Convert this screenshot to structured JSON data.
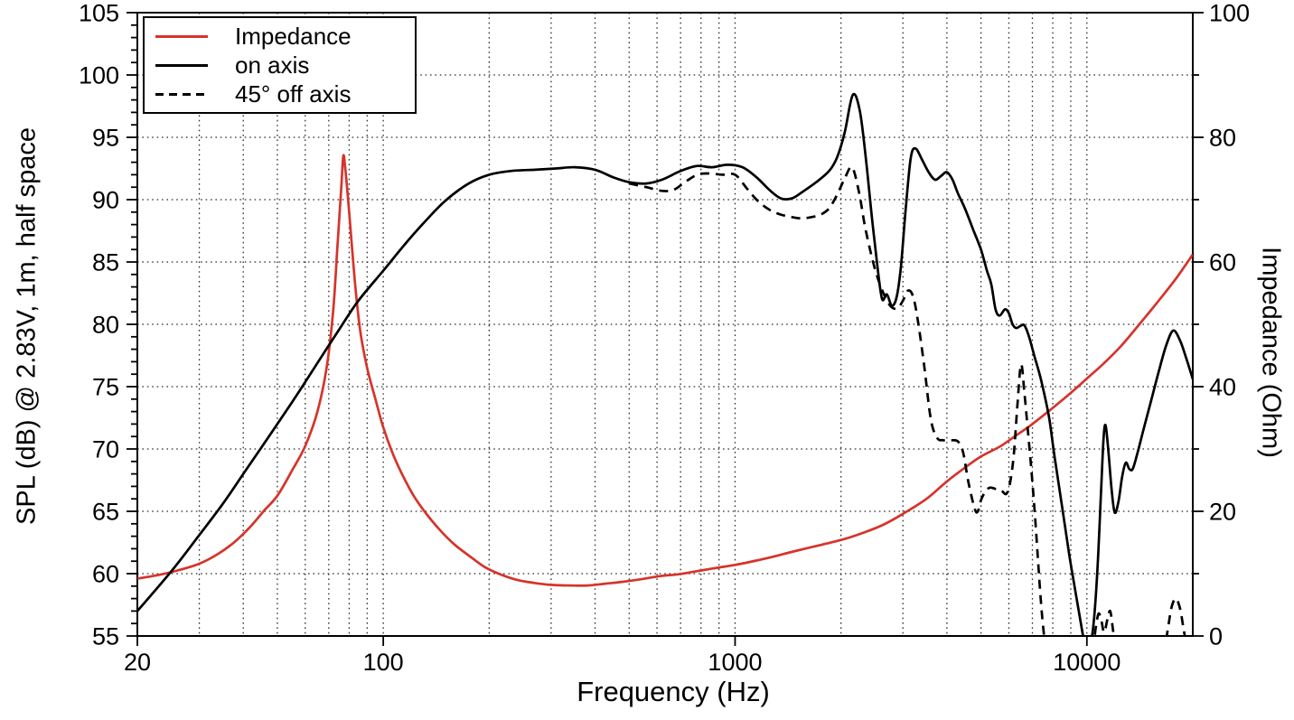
{
  "chart_data": {
    "type": "line",
    "x_axis": {
      "label": "Frequency (Hz)",
      "scale": "log",
      "min": 20,
      "max": 20000,
      "major_ticks": [
        20,
        100,
        1000,
        10000
      ],
      "major_tick_labels": [
        "20",
        "100",
        "1000",
        "10000"
      ]
    },
    "left_axis": {
      "label": "SPL (dB) @ 2.83V, 1m, half space",
      "min": 55,
      "max": 105,
      "major_step": 5,
      "minor_step": 1,
      "major_ticks": [
        55,
        60,
        65,
        70,
        75,
        80,
        85,
        90,
        95,
        100,
        105
      ]
    },
    "right_axis": {
      "label": "Impedance (Ohm)",
      "min": 0,
      "max": 100,
      "major_step": 20,
      "minor_step": 10,
      "major_ticks": [
        0,
        20,
        40,
        60,
        80,
        100
      ]
    },
    "grid": {
      "show": true,
      "style": "dotted",
      "color": "#2f2f2f",
      "h_lines_db": [
        60,
        65,
        70,
        75,
        80,
        85,
        90,
        95,
        100
      ],
      "v_lines_hz": [
        30,
        40,
        50,
        60,
        70,
        80,
        90,
        100,
        200,
        300,
        400,
        500,
        600,
        700,
        800,
        900,
        1000,
        2000,
        3000,
        4000,
        5000,
        6000,
        7000,
        8000,
        9000,
        10000
      ]
    },
    "legend": {
      "position": "top-left",
      "items": [
        {
          "label": "Impedance",
          "color": "#d5342b",
          "style": "solid"
        },
        {
          "label": "on axis",
          "color": "#000000",
          "style": "solid"
        },
        {
          "label": "45° off axis",
          "color": "#000000",
          "style": "dashed"
        }
      ]
    },
    "series": [
      {
        "name": "Impedance",
        "axis": "right",
        "unit": "Ohm",
        "color": "#d5342b",
        "style": "solid",
        "points": [
          [
            20,
            9.2
          ],
          [
            23,
            9.8
          ],
          [
            26,
            10.5
          ],
          [
            30,
            11.6
          ],
          [
            34,
            13.2
          ],
          [
            38,
            15.2
          ],
          [
            42,
            17.6
          ],
          [
            46,
            20.2
          ],
          [
            50,
            22.5
          ],
          [
            55,
            26.5
          ],
          [
            60,
            30.5
          ],
          [
            65,
            36
          ],
          [
            69,
            43
          ],
          [
            72,
            52
          ],
          [
            74,
            62
          ],
          [
            76,
            72
          ],
          [
            77,
            77
          ],
          [
            78,
            75
          ],
          [
            80,
            68
          ],
          [
            83,
            57
          ],
          [
            86,
            49
          ],
          [
            90,
            43
          ],
          [
            95,
            38
          ],
          [
            100,
            33.5
          ],
          [
            106,
            29.5
          ],
          [
            113,
            26
          ],
          [
            122,
            22.5
          ],
          [
            133,
            19.5
          ],
          [
            146,
            16.8
          ],
          [
            160,
            14.6
          ],
          [
            178,
            12.6
          ],
          [
            195,
            11
          ],
          [
            215,
            9.9
          ],
          [
            240,
            9
          ],
          [
            270,
            8.5
          ],
          [
            300,
            8.2
          ],
          [
            340,
            8.1
          ],
          [
            380,
            8.1
          ],
          [
            430,
            8.4
          ],
          [
            480,
            8.7
          ],
          [
            540,
            9.1
          ],
          [
            610,
            9.6
          ],
          [
            690,
            9.9
          ],
          [
            780,
            10.4
          ],
          [
            880,
            10.9
          ],
          [
            1000,
            11.4
          ],
          [
            1150,
            12.1
          ],
          [
            1300,
            12.8
          ],
          [
            1500,
            13.7
          ],
          [
            1750,
            14.6
          ],
          [
            2000,
            15.4
          ],
          [
            2300,
            16.5
          ],
          [
            2650,
            17.9
          ],
          [
            3000,
            19.6
          ],
          [
            3500,
            22
          ],
          [
            4000,
            24.8
          ],
          [
            4500,
            27
          ],
          [
            5000,
            28.8
          ],
          [
            5700,
            30.5
          ],
          [
            6300,
            32.2
          ],
          [
            7000,
            34
          ],
          [
            8000,
            36.6
          ],
          [
            9000,
            39
          ],
          [
            10000,
            41.3
          ],
          [
            11200,
            43.8
          ],
          [
            12500,
            46.5
          ],
          [
            14000,
            49.8
          ],
          [
            16000,
            53.8
          ],
          [
            18000,
            57.5
          ],
          [
            20000,
            61.2
          ]
        ]
      },
      {
        "name": "on axis",
        "axis": "left",
        "unit": "dB",
        "color": "#000000",
        "style": "solid",
        "points": [
          [
            20,
            57
          ],
          [
            25,
            60.2
          ],
          [
            30,
            63.1
          ],
          [
            35,
            65.6
          ],
          [
            40,
            68
          ],
          [
            45,
            70.1
          ],
          [
            50,
            72
          ],
          [
            57,
            74.4
          ],
          [
            65,
            76.9
          ],
          [
            75,
            79.6
          ],
          [
            85,
            81.9
          ],
          [
            100,
            84.3
          ],
          [
            115,
            86.4
          ],
          [
            130,
            88.1
          ],
          [
            150,
            89.9
          ],
          [
            175,
            91.3
          ],
          [
            200,
            92
          ],
          [
            230,
            92.3
          ],
          [
            270,
            92.4
          ],
          [
            310,
            92.5
          ],
          [
            350,
            92.6
          ],
          [
            400,
            92.4
          ],
          [
            450,
            91.8
          ],
          [
            500,
            91.4
          ],
          [
            560,
            91.3
          ],
          [
            620,
            91.6
          ],
          [
            700,
            92.3
          ],
          [
            780,
            92.7
          ],
          [
            860,
            92.6
          ],
          [
            950,
            92.8
          ],
          [
            1050,
            92.6
          ],
          [
            1150,
            91.8
          ],
          [
            1250,
            90.8
          ],
          [
            1350,
            90.1
          ],
          [
            1450,
            90.1
          ],
          [
            1550,
            90.6
          ],
          [
            1700,
            91.4
          ],
          [
            1850,
            92.3
          ],
          [
            1950,
            93.4
          ],
          [
            2050,
            95.4
          ],
          [
            2160,
            98.4
          ],
          [
            2260,
            97.2
          ],
          [
            2350,
            93.5
          ],
          [
            2450,
            88.5
          ],
          [
            2550,
            84.2
          ],
          [
            2620,
            82
          ],
          [
            2700,
            82.4
          ],
          [
            2790,
            81.5
          ],
          [
            2880,
            82.2
          ],
          [
            2960,
            84.6
          ],
          [
            3060,
            89.5
          ],
          [
            3160,
            93.4
          ],
          [
            3260,
            94.1
          ],
          [
            3400,
            93.2
          ],
          [
            3550,
            92.2
          ],
          [
            3700,
            91.6
          ],
          [
            3850,
            91.9
          ],
          [
            4000,
            92.2
          ],
          [
            4150,
            91.6
          ],
          [
            4300,
            90.5
          ],
          [
            4500,
            89.3
          ],
          [
            4750,
            87.6
          ],
          [
            5000,
            86
          ],
          [
            5200,
            84.3
          ],
          [
            5350,
            83.2
          ],
          [
            5500,
            81.2
          ],
          [
            5650,
            80.7
          ],
          [
            5850,
            81.2
          ],
          [
            6000,
            80.9
          ],
          [
            6150,
            80
          ],
          [
            6300,
            79.7
          ],
          [
            6500,
            79.9
          ],
          [
            6650,
            79.9
          ],
          [
            6850,
            79
          ],
          [
            7100,
            77.4
          ],
          [
            7400,
            75.6
          ],
          [
            7800,
            72.6
          ],
          [
            8100,
            69.3
          ],
          [
            8500,
            65.4
          ],
          [
            8900,
            61.6
          ],
          [
            9300,
            58.4
          ],
          [
            9700,
            55.4
          ],
          [
            9950,
            53.8
          ],
          [
            10150,
            53.8
          ],
          [
            10450,
            56
          ],
          [
            10700,
            60
          ],
          [
            10950,
            66
          ],
          [
            11150,
            70.8
          ],
          [
            11300,
            71.9
          ],
          [
            11500,
            70
          ],
          [
            11750,
            66.8
          ],
          [
            12000,
            64.9
          ],
          [
            12300,
            65.8
          ],
          [
            12600,
            67.8
          ],
          [
            12900,
            68.9
          ],
          [
            13200,
            68.4
          ],
          [
            13500,
            68.4
          ],
          [
            13900,
            69.6
          ],
          [
            14500,
            71.6
          ],
          [
            15200,
            73.8
          ],
          [
            16000,
            76.2
          ],
          [
            16800,
            78.3
          ],
          [
            17600,
            79.5
          ],
          [
            18400,
            78.7
          ],
          [
            19100,
            77.4
          ],
          [
            20000,
            75.6
          ]
        ]
      },
      {
        "name": "45° off axis",
        "axis": "left",
        "unit": "dB",
        "color": "#000000",
        "style": "dashed",
        "points": [
          [
            500,
            91.3
          ],
          [
            560,
            91
          ],
          [
            620,
            90.7
          ],
          [
            670,
            90.8
          ],
          [
            720,
            91.4
          ],
          [
            780,
            92
          ],
          [
            840,
            92.1
          ],
          [
            920,
            92
          ],
          [
            1000,
            92
          ],
          [
            1080,
            90.9
          ],
          [
            1160,
            89.9
          ],
          [
            1250,
            89.2
          ],
          [
            1350,
            88.8
          ],
          [
            1450,
            88.6
          ],
          [
            1550,
            88.5
          ],
          [
            1650,
            88.6
          ],
          [
            1750,
            88.8
          ],
          [
            1850,
            89.3
          ],
          [
            1950,
            90.4
          ],
          [
            2050,
            91.7
          ],
          [
            2150,
            92.6
          ],
          [
            2250,
            90.6
          ],
          [
            2350,
            87.6
          ],
          [
            2500,
            84.4
          ],
          [
            2650,
            82.4
          ],
          [
            2780,
            81.4
          ],
          [
            2900,
            81.3
          ],
          [
            3000,
            81.9
          ],
          [
            3100,
            82.7
          ],
          [
            3200,
            82.3
          ],
          [
            3300,
            80.5
          ],
          [
            3450,
            76.6
          ],
          [
            3600,
            72.4
          ],
          [
            3750,
            70.9
          ],
          [
            3900,
            70.7
          ],
          [
            4100,
            70.7
          ],
          [
            4300,
            70.6
          ],
          [
            4450,
            69.7
          ],
          [
            4600,
            67.4
          ],
          [
            4800,
            65.2
          ],
          [
            4900,
            65
          ],
          [
            5000,
            65.9
          ],
          [
            5150,
            66.6
          ],
          [
            5300,
            66.9
          ],
          [
            5500,
            66.8
          ],
          [
            5700,
            66.7
          ],
          [
            5900,
            66.4
          ],
          [
            6050,
            67.3
          ],
          [
            6200,
            69.6
          ],
          [
            6350,
            73.6
          ],
          [
            6500,
            76.8
          ],
          [
            6650,
            74.4
          ],
          [
            6800,
            71.4
          ],
          [
            6950,
            68.4
          ],
          [
            7100,
            65.1
          ],
          [
            7250,
            61.4
          ],
          [
            7400,
            57.8
          ],
          [
            7550,
            55.1
          ],
          [
            7700,
            53.6
          ],
          [
            8200,
            52.5
          ],
          [
            9000,
            52.3
          ],
          [
            10000,
            52.8
          ],
          [
            10400,
            54
          ],
          [
            10600,
            55.7
          ],
          [
            10800,
            56.8
          ],
          [
            11000,
            56.2
          ],
          [
            11200,
            55.3
          ],
          [
            11450,
            56.4
          ],
          [
            11650,
            57
          ],
          [
            11850,
            55.6
          ],
          [
            12050,
            53.9
          ],
          [
            12600,
            52.6
          ],
          [
            13500,
            52.3
          ],
          [
            15000,
            52.4
          ],
          [
            16200,
            53.3
          ],
          [
            16700,
            54.4
          ],
          [
            17000,
            55.6
          ],
          [
            17400,
            57.3
          ],
          [
            17900,
            58
          ],
          [
            18400,
            57.2
          ],
          [
            18800,
            55.7
          ],
          [
            19200,
            54.2
          ],
          [
            19600,
            52.9
          ],
          [
            20000,
            52.2
          ]
        ]
      }
    ]
  }
}
